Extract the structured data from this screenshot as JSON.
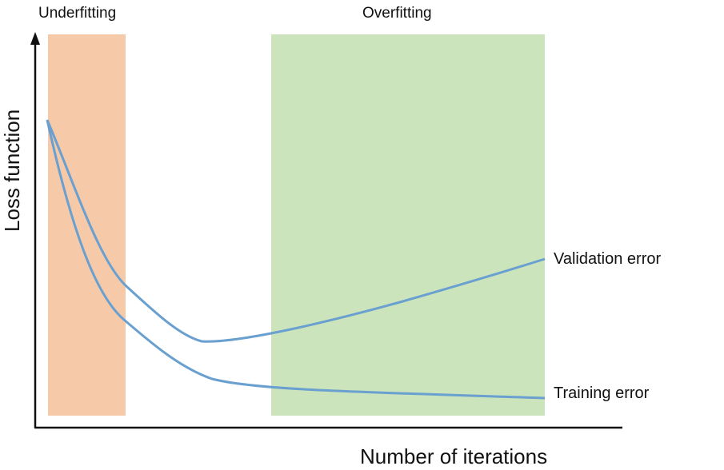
{
  "regions": {
    "underfitting": {
      "label": "Underfitting",
      "color": "#f6c9a8"
    },
    "overfitting": {
      "label": "Overfitting",
      "color": "#cce4bb"
    }
  },
  "axes": {
    "x_label": "Number of iterations",
    "y_label": "Loss function"
  },
  "curves": {
    "validation": {
      "label": "Validation error",
      "color": "#6aa0d0"
    },
    "training": {
      "label": "Training error",
      "color": "#6aa0d0"
    }
  }
}
